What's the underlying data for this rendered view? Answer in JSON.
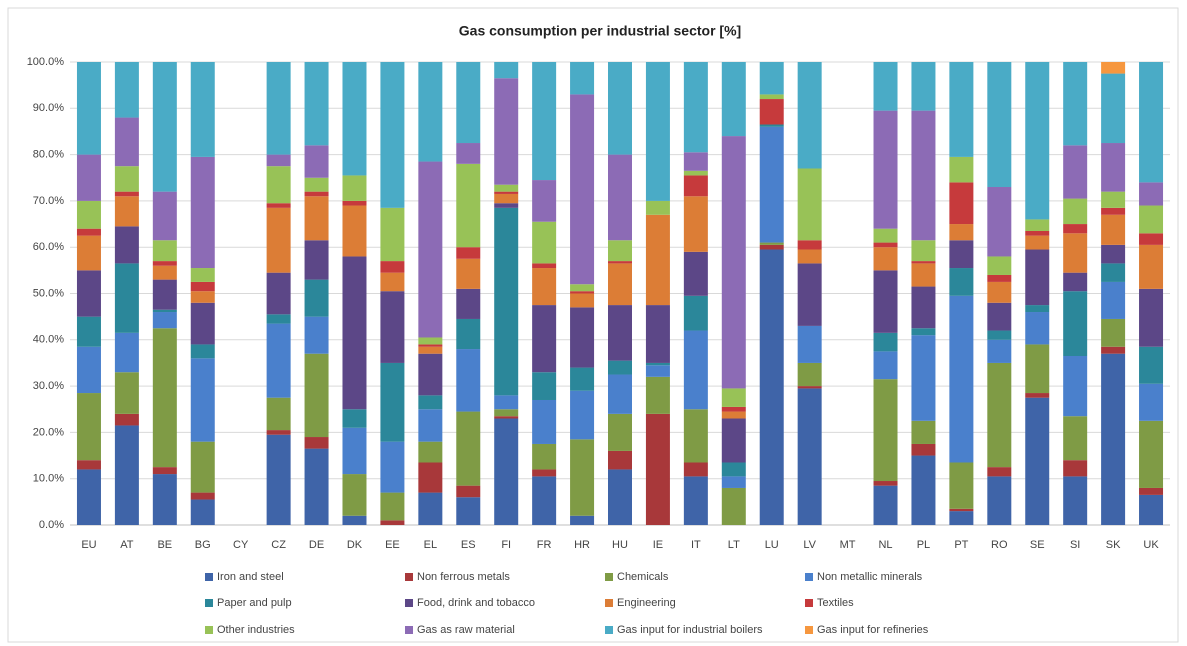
{
  "chart_data": {
    "type": "stacked_bar",
    "title": "Gas consumption per industrial sector [%]",
    "categories": [
      "EU",
      "AT",
      "BE",
      "BG",
      "CY",
      "CZ",
      "DE",
      "DK",
      "EE",
      "EL",
      "ES",
      "FI",
      "FR",
      "HR",
      "HU",
      "IE",
      "IT",
      "LT",
      "LU",
      "LV",
      "MT",
      "NL",
      "PL",
      "PT",
      "RO",
      "SE",
      "SI",
      "SK",
      "UK"
    ],
    "ylim": [
      0,
      100
    ],
    "yticks": [
      {
        "value": 0,
        "label": "0.0%"
      },
      {
        "value": 10,
        "label": "10.0%"
      },
      {
        "value": 20,
        "label": "20.0%"
      },
      {
        "value": 30,
        "label": "30.0%"
      },
      {
        "value": 40,
        "label": "40.0%"
      },
      {
        "value": 50,
        "label": "50.0%"
      },
      {
        "value": 60,
        "label": "60.0%"
      },
      {
        "value": 70,
        "label": "70.0%"
      },
      {
        "value": 80,
        "label": "80.0%"
      },
      {
        "value": 90,
        "label": "90.0%"
      },
      {
        "value": 100,
        "label": "100.0%"
      }
    ],
    "grid": true,
    "series": [
      {
        "name": "Iron and steel",
        "color": "#3f64a8",
        "values": [
          12,
          21.5,
          11,
          5.5,
          null,
          19.5,
          16.5,
          2,
          0,
          7,
          6,
          23,
          10.5,
          2,
          12,
          0,
          10.5,
          0,
          59.5,
          29.5,
          null,
          8.5,
          15,
          3,
          10.5,
          27.5,
          10.5,
          37,
          6.5
        ]
      },
      {
        "name": "Non ferrous metals",
        "color": "#a8383a",
        "values": [
          2,
          2.5,
          1.5,
          1.5,
          null,
          1,
          2.5,
          0,
          1,
          6.5,
          2.5,
          0.5,
          1.5,
          0,
          4,
          24,
          3,
          0,
          1,
          0.5,
          null,
          1,
          2.5,
          0.5,
          2,
          1,
          3.5,
          1.5,
          1.5
        ]
      },
      {
        "name": "Chemicals",
        "color": "#7f9b45",
        "values": [
          14.5,
          9,
          30,
          11,
          null,
          7,
          18,
          9,
          6,
          4.5,
          16,
          1.5,
          5.5,
          16.5,
          8,
          8,
          11.5,
          8,
          0.5,
          5,
          null,
          22,
          5,
          10,
          22.5,
          10.5,
          9.5,
          6,
          14.5
        ]
      },
      {
        "name": "Non metallic minerals",
        "color": "#4a80cc",
        "values": [
          10,
          8.5,
          3.5,
          18,
          null,
          16,
          8,
          10,
          11,
          7,
          13.5,
          3,
          9.5,
          10.5,
          8.5,
          2.5,
          17,
          2.5,
          25,
          8,
          null,
          6,
          18.5,
          36,
          5,
          7,
          13,
          8,
          8
        ]
      },
      {
        "name": "Paper and pulp",
        "color": "#2b879a",
        "values": [
          6.5,
          15,
          0.5,
          3,
          null,
          2,
          8,
          4,
          17,
          3,
          6.5,
          40.5,
          6,
          5,
          3,
          0.5,
          7.5,
          3,
          0.5,
          0,
          null,
          4,
          1.5,
          6,
          2,
          1.5,
          14,
          4,
          8
        ]
      },
      {
        "name": "Food, drink and tobacco",
        "color": "#5c4787",
        "values": [
          10,
          8,
          6.5,
          9,
          null,
          9,
          8.5,
          33,
          15.5,
          9,
          6.5,
          1,
          14.5,
          13,
          12,
          12.5,
          9.5,
          9.5,
          0,
          13.5,
          null,
          13.5,
          9,
          6,
          6,
          12,
          4,
          4,
          12.5
        ]
      },
      {
        "name": "Engineering",
        "color": "#dc7d36",
        "values": [
          7.5,
          6.5,
          3,
          2.5,
          null,
          14,
          9.5,
          11,
          4,
          1.5,
          6.5,
          2,
          8,
          3,
          9,
          19.5,
          12,
          1.5,
          0,
          3,
          null,
          5,
          5,
          3.5,
          4.5,
          3,
          8.5,
          6.5,
          9.5
        ]
      },
      {
        "name": "Textiles",
        "color": "#c63a3c",
        "values": [
          1.5,
          1,
          1,
          2,
          null,
          1,
          1,
          1,
          2.5,
          0.5,
          2.5,
          0.5,
          1,
          0.5,
          0.5,
          0,
          4.5,
          1,
          5.5,
          2,
          null,
          1,
          0.5,
          9,
          1.5,
          1,
          2,
          1.5,
          2.5
        ]
      },
      {
        "name": "Other industries",
        "color": "#98c257",
        "values": [
          6,
          5.5,
          4.5,
          3,
          null,
          8,
          3,
          5.5,
          11.5,
          1.5,
          18,
          1.5,
          9,
          1.5,
          4.5,
          3,
          1,
          4,
          1,
          15.5,
          null,
          3,
          4.5,
          5.5,
          4,
          2.5,
          5.5,
          3.5,
          6
        ]
      },
      {
        "name": "Gas as raw material",
        "color": "#8c6bb5",
        "values": [
          10,
          10.5,
          10.5,
          24,
          null,
          2.5,
          7,
          0,
          0,
          38,
          4.5,
          23,
          9,
          41,
          18.5,
          0,
          4,
          54.5,
          0,
          0,
          null,
          25.5,
          28,
          0,
          15,
          0,
          11.5,
          10.5,
          5
        ]
      },
      {
        "name": "Gas input for industrial boilers",
        "color": "#4aabc6",
        "values": [
          20,
          12,
          28,
          20.5,
          null,
          20,
          18,
          24.5,
          31.5,
          21.5,
          17.5,
          3.5,
          25.5,
          7,
          20,
          30,
          19.5,
          16,
          7,
          23,
          null,
          10.5,
          10.5,
          20.5,
          27,
          34,
          18,
          15,
          26
        ]
      },
      {
        "name": "Gas input for refineries",
        "color": "#f6973f",
        "values": [
          0,
          0,
          0,
          0,
          null,
          0,
          0,
          0,
          0,
          0,
          0,
          0,
          0,
          0,
          0,
          0,
          0,
          0,
          0,
          0,
          null,
          0,
          0,
          0,
          0,
          0,
          0,
          2.5,
          0
        ]
      }
    ]
  }
}
